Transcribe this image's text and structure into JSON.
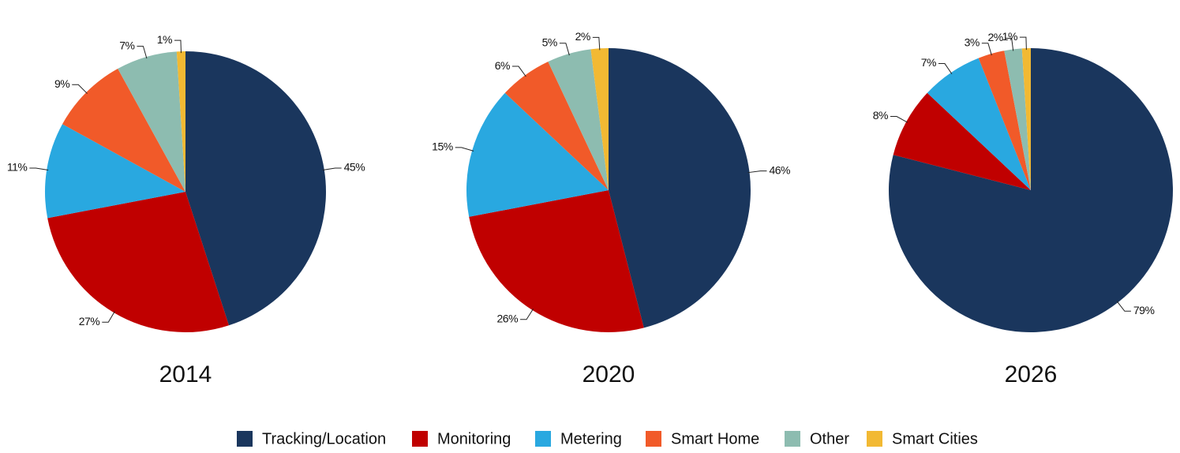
{
  "chart_data": [
    {
      "type": "pie",
      "title": "2014",
      "categories": [
        "Tracking/Location",
        "Monitoring",
        "Metering",
        "Smart Home",
        "Other",
        "Smart Cities"
      ],
      "values": [
        45,
        27,
        11,
        9,
        7,
        1
      ],
      "value_labels": [
        "45%",
        "27%",
        "11%",
        "9%",
        "7%",
        "1%"
      ],
      "colors": [
        "#1a365d",
        "#c00000",
        "#29a8e0",
        "#f15a29",
        "#8dbcb0",
        "#f2b933"
      ]
    },
    {
      "type": "pie",
      "title": "2020",
      "categories": [
        "Tracking/Location",
        "Monitoring",
        "Metering",
        "Smart Home",
        "Other",
        "Smart Cities"
      ],
      "values": [
        46,
        26,
        15,
        6,
        5,
        2
      ],
      "value_labels": [
        "46%",
        "26%",
        "15%",
        "6%",
        "5%",
        "2%"
      ],
      "colors": [
        "#1a365d",
        "#c00000",
        "#29a8e0",
        "#f15a29",
        "#8dbcb0",
        "#f2b933"
      ]
    },
    {
      "type": "pie",
      "title": "2026",
      "categories": [
        "Tracking/Location",
        "Monitoring",
        "Metering",
        "Smart Home",
        "Other",
        "Smart Cities"
      ],
      "values": [
        79,
        8,
        7,
        3,
        2,
        1
      ],
      "value_labels": [
        "79%",
        "8%",
        "7%",
        "3%",
        "2%",
        "1%"
      ],
      "colors": [
        "#1a365d",
        "#c00000",
        "#29a8e0",
        "#f15a29",
        "#8dbcb0",
        "#f2b933"
      ]
    }
  ]
}
